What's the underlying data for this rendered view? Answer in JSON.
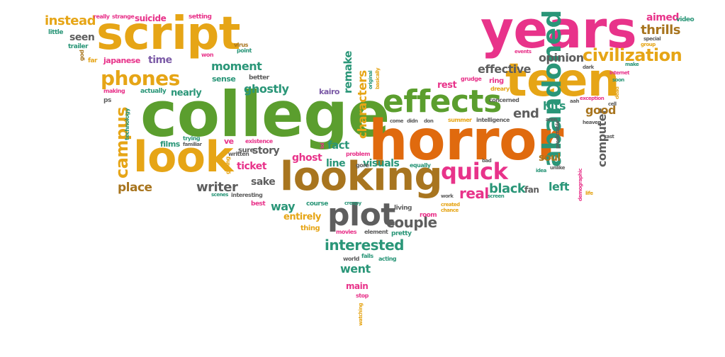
{
  "colors": {
    "green": "#5b9e2e",
    "orange": "#e06a0e",
    "gold": "#e6a516",
    "brown": "#a8751f",
    "pink": "#e8338a",
    "gray": "#5e5e5e",
    "teal": "#2a9678",
    "purple": "#7b5aa6",
    "dark": "#444444"
  },
  "words": [
    {
      "text": "college",
      "color": "green"
    },
    {
      "text": "horror",
      "color": "orange"
    },
    {
      "text": "years",
      "color": "pink"
    },
    {
      "text": "teen",
      "color": "gold"
    },
    {
      "text": "script",
      "color": "gold"
    },
    {
      "text": "looking",
      "color": "brown"
    },
    {
      "text": "look",
      "color": "gold"
    },
    {
      "text": "effects",
      "color": "green"
    },
    {
      "text": "plot",
      "color": "gray"
    },
    {
      "text": "quick",
      "color": "pink"
    },
    {
      "text": "phones",
      "color": "gold"
    },
    {
      "text": "civilization",
      "color": "gold"
    },
    {
      "text": "abandoned",
      "color": "teal"
    },
    {
      "text": "campus",
      "color": "gold"
    },
    {
      "text": "characters",
      "color": "gold"
    },
    {
      "text": "computer",
      "color": "gray"
    },
    {
      "text": "remake",
      "color": "teal"
    },
    {
      "text": "interested",
      "color": "teal"
    },
    {
      "text": "writer",
      "color": "gray"
    },
    {
      "text": "place",
      "color": "brown"
    },
    {
      "text": "instead",
      "color": "gold"
    },
    {
      "text": "thrills",
      "color": "brown"
    },
    {
      "text": "opinion",
      "color": "gray"
    },
    {
      "text": "fact",
      "color": "teal"
    },
    {
      "text": "real",
      "color": "pink"
    },
    {
      "text": "black",
      "color": "teal"
    },
    {
      "text": "left",
      "color": "teal"
    },
    {
      "text": "end",
      "color": "gray"
    },
    {
      "text": "hits",
      "color": "teal"
    },
    {
      "text": "good",
      "color": "brown"
    },
    {
      "text": "effective",
      "color": "gray"
    },
    {
      "text": "ghostly",
      "color": "teal"
    },
    {
      "text": "moment",
      "color": "teal"
    },
    {
      "text": "way",
      "color": "teal"
    },
    {
      "text": "couple",
      "color": "gray"
    },
    {
      "text": "went",
      "color": "teal"
    },
    {
      "text": "line",
      "color": "teal"
    },
    {
      "text": "ghost",
      "color": "pink"
    },
    {
      "text": "ticket",
      "color": "pink"
    },
    {
      "text": "sake",
      "color": "gray"
    },
    {
      "text": "story",
      "color": "gray"
    },
    {
      "text": "soul",
      "color": "brown"
    },
    {
      "text": "visuals",
      "color": "teal"
    },
    {
      "text": "time",
      "color": "purple"
    },
    {
      "text": "seen",
      "color": "gray"
    },
    {
      "text": "aimed",
      "color": "pink"
    },
    {
      "text": "nearly",
      "color": "teal"
    },
    {
      "text": "rest",
      "color": "pink"
    },
    {
      "text": "entirely",
      "color": "gold"
    },
    {
      "text": "main",
      "color": "pink"
    },
    {
      "text": "fan",
      "color": "gray"
    },
    {
      "text": "films",
      "color": "teal"
    },
    {
      "text": "suicide",
      "color": "pink"
    },
    {
      "text": "kairo",
      "color": "purple"
    },
    {
      "text": "japanese",
      "color": "pink"
    },
    {
      "text": "sense",
      "color": "teal"
    },
    {
      "text": "ve",
      "color": "pink"
    },
    {
      "text": "sure",
      "color": "gray"
    },
    {
      "text": "thing",
      "color": "gold"
    },
    {
      "text": "ring",
      "color": "pink"
    },
    {
      "text": "video",
      "color": "teal"
    },
    {
      "text": "little",
      "color": "teal"
    },
    {
      "text": "really",
      "color": "pink"
    },
    {
      "text": "strange",
      "color": "pink"
    },
    {
      "text": "setting",
      "color": "pink"
    },
    {
      "text": "trailer",
      "color": "teal"
    },
    {
      "text": "virus",
      "color": "brown"
    },
    {
      "text": "point",
      "color": "teal"
    },
    {
      "text": "far",
      "color": "gold"
    },
    {
      "text": "god",
      "color": "brown"
    },
    {
      "text": "won",
      "color": "pink"
    },
    {
      "text": "better",
      "color": "gray"
    },
    {
      "text": "making",
      "color": "pink"
    },
    {
      "text": "actually",
      "color": "teal"
    },
    {
      "text": "ps",
      "color": "gray"
    },
    {
      "text": "technology",
      "color": "teal"
    },
    {
      "text": "trying",
      "color": "teal"
    },
    {
      "text": "familiar",
      "color": "gray"
    },
    {
      "text": "existence",
      "color": "pink"
    },
    {
      "text": "written",
      "color": "gray"
    },
    {
      "text": "giving",
      "color": "gold"
    },
    {
      "text": "interesting",
      "color": "gray"
    },
    {
      "text": "best",
      "color": "pink"
    },
    {
      "text": "scenes",
      "color": "teal"
    },
    {
      "text": "course",
      "color": "teal"
    },
    {
      "text": "movies",
      "color": "pink"
    },
    {
      "text": "element",
      "color": "gray"
    },
    {
      "text": "pretty",
      "color": "teal"
    },
    {
      "text": "living",
      "color": "gray"
    },
    {
      "text": "room",
      "color": "pink"
    },
    {
      "text": "creepy",
      "color": "teal"
    },
    {
      "text": "gore",
      "color": "gray"
    },
    {
      "text": "problem",
      "color": "pink"
    },
    {
      "text": "equally",
      "color": "teal"
    },
    {
      "text": "world",
      "color": "gray"
    },
    {
      "text": "fails",
      "color": "teal"
    },
    {
      "text": "acting",
      "color": "teal"
    },
    {
      "text": "stop",
      "color": "pink"
    },
    {
      "text": "watching",
      "color": "gold"
    },
    {
      "text": "original",
      "color": "teal"
    },
    {
      "text": "basically",
      "color": "gold"
    },
    {
      "text": "grudge",
      "color": "pink"
    },
    {
      "text": "dreary",
      "color": "gold"
    },
    {
      "text": "concerned",
      "color": "gray"
    },
    {
      "text": "come",
      "color": "gray"
    },
    {
      "text": "didn",
      "color": "gray"
    },
    {
      "text": "don",
      "color": "gray"
    },
    {
      "text": "summer",
      "color": "gold"
    },
    {
      "text": "intelligence",
      "color": "gray"
    },
    {
      "text": "aren",
      "color": "gray"
    },
    {
      "text": "predictable",
      "color": "gray"
    },
    {
      "text": "aah",
      "color": "gray"
    },
    {
      "text": "cell",
      "color": "gray"
    },
    {
      "text": "dead",
      "color": "gold"
    },
    {
      "text": "cast",
      "color": "gray"
    },
    {
      "text": "exception",
      "color": "pink"
    },
    {
      "text": "soon",
      "color": "teal"
    },
    {
      "text": "internet",
      "color": "pink"
    },
    {
      "text": "dark",
      "color": "gray"
    },
    {
      "text": "make",
      "color": "teal"
    },
    {
      "text": "events",
      "color": "pink"
    },
    {
      "text": "group",
      "color": "gold"
    },
    {
      "text": "special",
      "color": "gray"
    },
    {
      "text": "heaven",
      "color": "gray"
    },
    {
      "text": "demographic",
      "color": "pink"
    },
    {
      "text": "life",
      "color": "gold"
    },
    {
      "text": "unlike",
      "color": "gray"
    },
    {
      "text": "idea",
      "color": "teal"
    },
    {
      "text": "bad",
      "color": "gray"
    },
    {
      "text": "screen",
      "color": "teal"
    },
    {
      "text": "work",
      "color": "gray"
    },
    {
      "text": "created",
      "color": "gold"
    },
    {
      "text": "chance",
      "color": "gold"
    },
    {
      "text": "lol",
      "color": "pink"
    }
  ]
}
